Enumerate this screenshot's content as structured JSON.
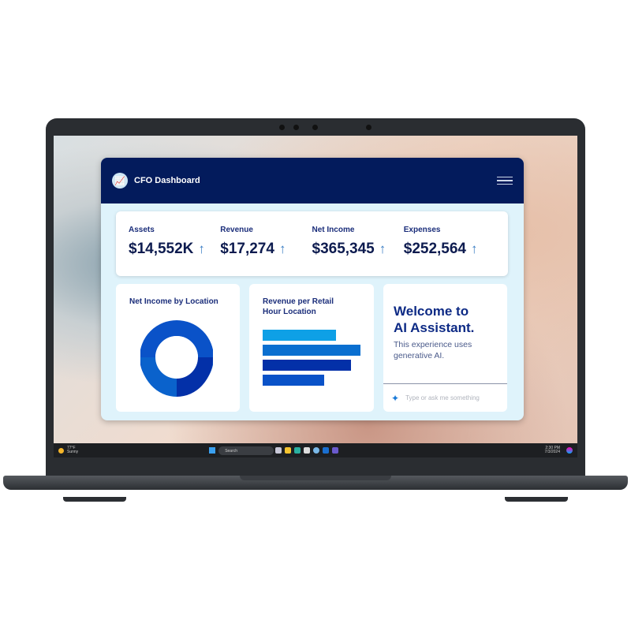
{
  "app": {
    "title": "CFO Dashboard",
    "logo_icon": "chart-icon",
    "menu_icon": "hamburger-icon"
  },
  "kpis": [
    {
      "label": "Assets",
      "value": "$14,552K",
      "trend": "↑"
    },
    {
      "label": "Revenue",
      "value": "$17,274",
      "trend": "↑"
    },
    {
      "label": "Net Income",
      "value": "$365,345",
      "trend": "↑"
    },
    {
      "label": "Expenses",
      "value": "$252,564",
      "trend": "↑"
    }
  ],
  "cards": {
    "donut": {
      "title": "Net Income by Location"
    },
    "bars": {
      "title_line1": "Revenue per Retail",
      "title_line2": "Hour Location",
      "values": [
        75,
        100,
        90,
        63
      ],
      "colors": [
        "#0ea0e6",
        "#0a6fd0",
        "#0330a8",
        "#0a52c8"
      ]
    },
    "assistant": {
      "title_line1": "Welcome to",
      "title_line2": "AI Assistant.",
      "subtitle_line1": "This experience uses",
      "subtitle_line2": "generative AI.",
      "placeholder": "Type or ask me something",
      "icon": "sparkle-icon"
    }
  },
  "taskbar": {
    "weather_temp": "77°F",
    "weather_desc": "Sunny",
    "search": "Search",
    "time": "2:30 PM",
    "date": "7/3/2024"
  },
  "colors": {
    "header": "#031b5c",
    "accent": "#0a52c8",
    "background": "#dff3fb"
  }
}
